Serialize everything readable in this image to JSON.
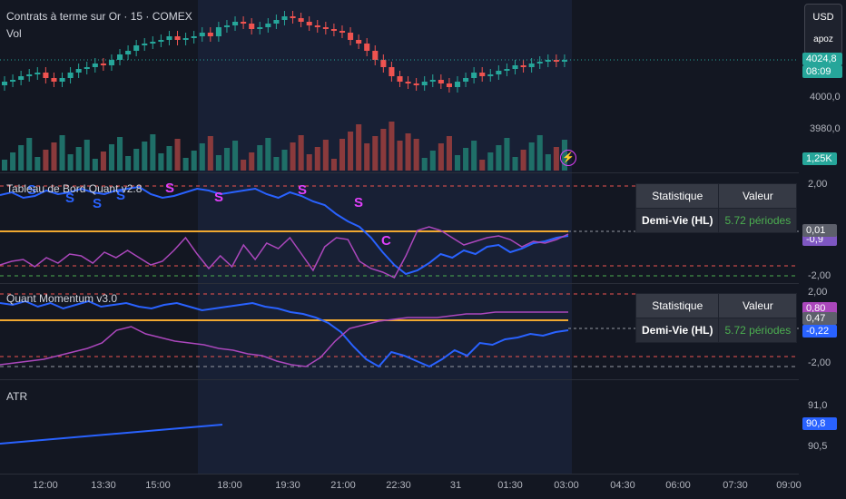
{
  "header": {
    "symbol": "Contrats à terme sur Or · 15 · COMEX",
    "vol_label": "Vol"
  },
  "currency_box": {
    "currency": "USD",
    "sub": "apoz"
  },
  "colors": {
    "bg": "#131722",
    "up": "#26a69a",
    "down": "#ef5350",
    "blue": "#2962ff",
    "purple": "#ab47bc",
    "orange": "#f0a830",
    "pink": "#e040fb",
    "green": "#4caf50"
  },
  "main_axis": {
    "labels": [
      "4000,0",
      "3980,0"
    ],
    "price_tag": "4024,8",
    "time_tag": "08:09",
    "vol_tag": "1,25K"
  },
  "panel1": {
    "title": "Tableau de Bord Quant v2.8",
    "axis_labels": [
      "2,00",
      "-2,00"
    ],
    "tag_top": "0,01",
    "tag_bottom": "-0,9",
    "signal_labels": [
      "S",
      "S",
      "S",
      "S",
      "S",
      "S",
      "S",
      "S",
      "C"
    ]
  },
  "panel2": {
    "title": "Quant Momentum v3.0",
    "axis_labels": [
      "2,00",
      "-2,00"
    ],
    "tag1": "0,80",
    "tag2": "0,47",
    "tag3": "-0,22"
  },
  "stats_table_1": {
    "col1": "Statistique",
    "col2": "Valeur",
    "row_key": "Demi-Vie (HL)",
    "row_value": "5.72 périodes"
  },
  "stats_table_2": {
    "col1": "Statistique",
    "col2": "Valeur",
    "row_key": "Demi-Vie (HL)",
    "row_value": "5.72 périodes"
  },
  "atr": {
    "title": "ATR",
    "axis_labels": [
      "91,0",
      "90,5"
    ],
    "tag": "90,8"
  },
  "time_axis": {
    "labels": [
      "12:00",
      "13:30",
      "15:00",
      "18:00",
      "19:30",
      "21:00",
      "22:30",
      "31",
      "01:30",
      "03:00",
      "04:30",
      "06:00",
      "07:30",
      "09:00"
    ]
  }
}
